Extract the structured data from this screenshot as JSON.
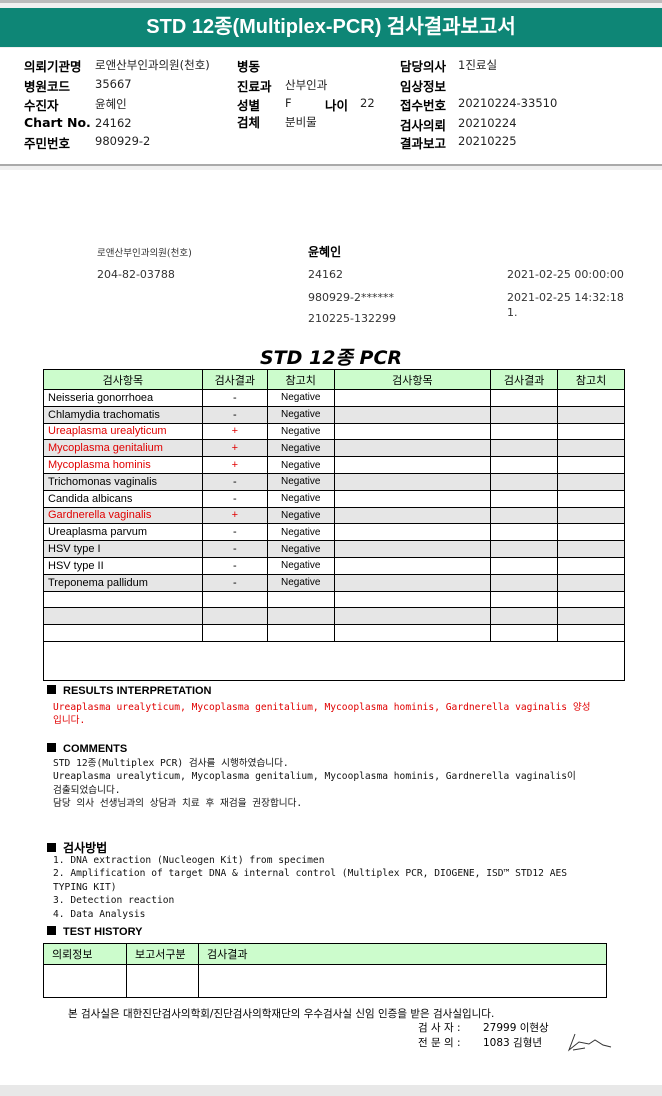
{
  "title": "STD 12종(Multiplex-PCR) 검사결과보고서",
  "info": {
    "institution_label": "의뢰기관명",
    "institution": "로앤산부인과의원(천호)",
    "ward_label": "병동",
    "ward": "",
    "doctor_label": "담당의사",
    "doctor": "1진료실",
    "hospital_code_label": "병원코드",
    "hospital_code": "35667",
    "dept_label": "진료과",
    "dept": "산부인과",
    "clinical_label": "임상정보",
    "clinical": "",
    "patient_label": "수진자",
    "patient": "윤혜인",
    "sex_label": "성별",
    "sex": "F",
    "age_label": "나이",
    "age": "22",
    "receipt_label": "접수번호",
    "receipt": "20210224-33510",
    "chart_label": "Chart No.",
    "chart": "24162",
    "specimen_label": "검체",
    "specimen": "분비물",
    "request_label": "검사의뢰",
    "request": "20210224",
    "id_label": "주민번호",
    "id": "980929-2",
    "report_label": "결과보고",
    "report": "20210225"
  },
  "doc": {
    "clinic": "로앤산부인과의원(천호)",
    "clinic_no": "204-82-03788",
    "patient": "윤혜인",
    "chart": "24162",
    "id": "980929-2******",
    "specimen_no": "210225-132299",
    "date1": "2021-02-25 00:00:00",
    "date2": "2021-02-25 14:32:18",
    "date3": "1."
  },
  "pcr_title": "STD 12종 PCR",
  "table": {
    "headers": [
      "검사항목",
      "검사결과",
      "참고치",
      "검사항목",
      "검사결과",
      "참고치"
    ],
    "rows": [
      {
        "name": "Neisseria gonorrhoea",
        "result": "-",
        "ref": "Negative",
        "positive": false
      },
      {
        "name": "Chlamydia trachomatis",
        "result": "-",
        "ref": "Negative",
        "positive": false
      },
      {
        "name": "Ureaplasma urealyticum",
        "result": "+",
        "ref": "Negative",
        "positive": true
      },
      {
        "name": "Mycoplasma genitalium",
        "result": "+",
        "ref": "Negative",
        "positive": true
      },
      {
        "name": "Mycoplasma hominis",
        "result": "+",
        "ref": "Negative",
        "positive": true
      },
      {
        "name": "Trichomonas vaginalis",
        "result": "-",
        "ref": "Negative",
        "positive": false
      },
      {
        "name": "Candida albicans",
        "result": "-",
        "ref": "Negative",
        "positive": false
      },
      {
        "name": "Gardnerella vaginalis",
        "result": "+",
        "ref": "Negative",
        "positive": true
      },
      {
        "name": "Ureaplasma parvum",
        "result": "-",
        "ref": "Negative",
        "positive": false
      },
      {
        "name": "HSV type I",
        "result": "-",
        "ref": "Negative",
        "positive": false
      },
      {
        "name": "HSV type II",
        "result": "-",
        "ref": "Negative",
        "positive": false
      },
      {
        "name": "Treponema pallidum",
        "result": "-",
        "ref": "Negative",
        "positive": false
      }
    ]
  },
  "results": {
    "heading": "RESULTS   INTERPRETATION",
    "text": "Ureaplasma urealyticum, Mycoplasma genitalium, Mycooplasma hominis, Gardnerella vaginalis 양성\n입니다."
  },
  "comments": {
    "heading": "COMMENTS",
    "text": "STD 12종(Multiplex PCR) 검사를 시행하였습니다.\nUreaplasma urealyticum, Mycoplasma genitalium, Mycooplasma hominis, Gardnerella vaginalis이\n검출되었습니다.\n담당 의사 선생님과의 상담과 치료 후 재검을 권장합니다."
  },
  "method": {
    "heading": "검사방법",
    "text": "1. DNA extraction (Nucleogen Kit) from specimen\n2. Amplification of target DNA & internal control (Multiplex PCR, DIOGENE, ISD™ STD12 AES\nTYPING KIT)\n3. Detection reaction\n4. Data Analysis"
  },
  "history": {
    "heading": "TEST HISTORY",
    "headers": [
      "의뢰정보",
      "보고서구분",
      "검사결과"
    ]
  },
  "footer": {
    "cert": "본 검사실은 대한진단검사의학회/진단검사의학재단의 우수검사실 신임 인증을 받은 검사실입니다.",
    "tester_label": "검 사 자 :",
    "tester": "27999 이현상",
    "specialist_label": "전 문 의 :",
    "specialist": "1083 김형년"
  }
}
